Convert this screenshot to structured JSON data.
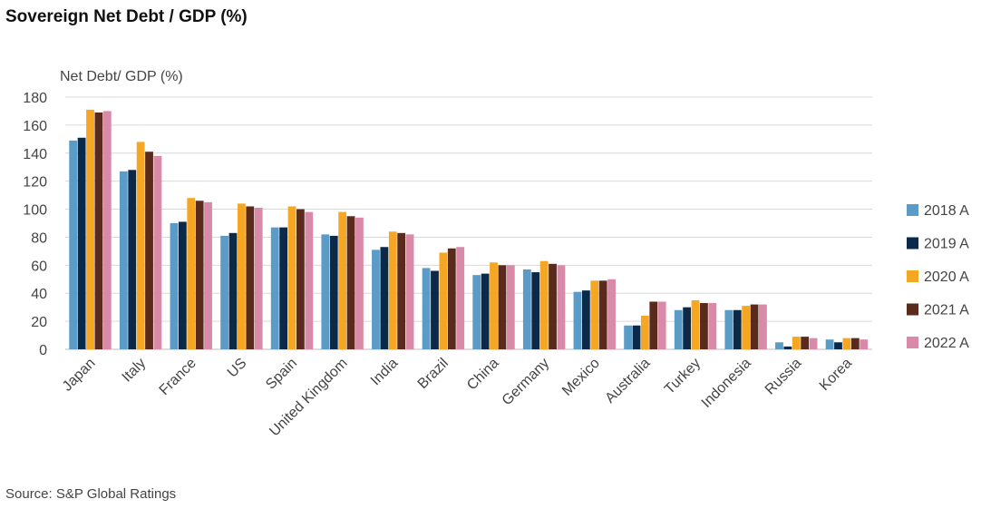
{
  "title": "Sovereign Net Debt / GDP (%)",
  "source": "Source: S&P Global Ratings",
  "chart_data": {
    "type": "bar",
    "ylabel": "Net Debt/ GDP (%)",
    "ylim": [
      0,
      180
    ],
    "yticks": [
      0,
      20,
      40,
      60,
      80,
      100,
      120,
      140,
      160,
      180
    ],
    "grid": true,
    "legend_position": "right",
    "categories": [
      "Japan",
      "Italy",
      "France",
      "US",
      "Spain",
      "United Kingdom",
      "India",
      "Brazil",
      "China",
      "Germany",
      "Mexico",
      "Australia",
      "Turkey",
      "Indonesia",
      "Russia",
      "Korea"
    ],
    "series": [
      {
        "name": "2018 A",
        "color": "#5b9bc8",
        "values": [
          149,
          127,
          90,
          81,
          87,
          82,
          71,
          58,
          53,
          57,
          41,
          17,
          28,
          28,
          5,
          7
        ]
      },
      {
        "name": "2019 A",
        "color": "#0b2a4a",
        "values": [
          151,
          128,
          91,
          83,
          87,
          81,
          73,
          56,
          54,
          55,
          42,
          17,
          30,
          28,
          2,
          5
        ]
      },
      {
        "name": "2020 A",
        "color": "#f5a623",
        "values": [
          171,
          148,
          108,
          104,
          102,
          98,
          84,
          69,
          62,
          63,
          49,
          24,
          35,
          31,
          9,
          8
        ]
      },
      {
        "name": "2021 A",
        "color": "#5a2a1c",
        "values": [
          169,
          141,
          106,
          102,
          100,
          95,
          83,
          72,
          60,
          61,
          49,
          34,
          33,
          32,
          9,
          8
        ]
      },
      {
        "name": "2022 A",
        "color": "#d98aa8",
        "values": [
          170,
          138,
          105,
          101,
          98,
          94,
          82,
          73,
          60,
          60,
          50,
          34,
          33,
          32,
          8,
          7
        ]
      }
    ]
  }
}
